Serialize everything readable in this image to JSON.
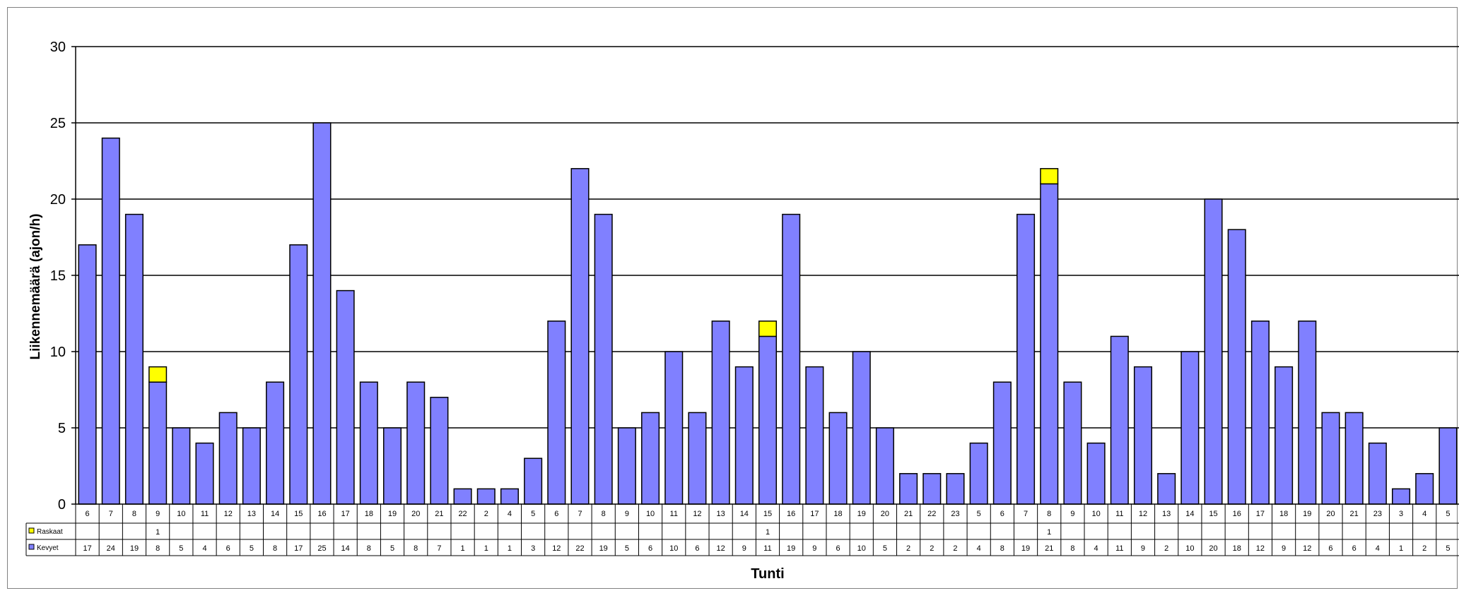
{
  "chart_data": {
    "type": "bar",
    "stacked": true,
    "ylabel": "Liikennemäärä (ajon/h)",
    "xlabel": "Tunti",
    "ylim": [
      0,
      30
    ],
    "yticks": [
      0,
      5,
      10,
      15,
      20,
      25,
      30
    ],
    "grid": true,
    "legend_placement": "data-table-left",
    "categories": [
      "6",
      "7",
      "8",
      "9",
      "10",
      "11",
      "12",
      "13",
      "14",
      "15",
      "16",
      "17",
      "18",
      "19",
      "20",
      "21",
      "22",
      "2",
      "4",
      "5",
      "6",
      "7",
      "8",
      "9",
      "10",
      "11",
      "12",
      "13",
      "14",
      "15",
      "16",
      "17",
      "18",
      "19",
      "20",
      "21",
      "22",
      "23",
      "5",
      "6",
      "7",
      "8",
      "9",
      "10",
      "11",
      "12",
      "13",
      "14",
      "15",
      "16",
      "17",
      "18",
      "19",
      "20",
      "21",
      "23",
      "3",
      "4",
      "5"
    ],
    "series": [
      {
        "name": "Kevyet",
        "color": "#8080ff",
        "values": [
          17,
          24,
          19,
          8,
          5,
          4,
          6,
          5,
          8,
          17,
          25,
          14,
          8,
          5,
          8,
          7,
          1,
          1,
          1,
          3,
          12,
          22,
          19,
          5,
          6,
          10,
          6,
          12,
          9,
          11,
          19,
          9,
          6,
          10,
          5,
          2,
          2,
          2,
          4,
          8,
          19,
          21,
          8,
          4,
          11,
          9,
          2,
          10,
          20,
          18,
          12,
          9,
          12,
          6,
          6,
          4,
          1,
          2,
          5
        ]
      },
      {
        "name": "Raskaat",
        "color": "#ffff00",
        "values": [
          null,
          null,
          null,
          1,
          null,
          null,
          null,
          null,
          null,
          null,
          null,
          null,
          null,
          null,
          null,
          null,
          null,
          null,
          null,
          null,
          null,
          null,
          null,
          null,
          null,
          null,
          null,
          null,
          null,
          1,
          null,
          null,
          null,
          null,
          null,
          null,
          null,
          null,
          null,
          null,
          null,
          1,
          null,
          null,
          null,
          null,
          null,
          null,
          null,
          null,
          null,
          null,
          null,
          null,
          null,
          null,
          null,
          null,
          null
        ]
      }
    ]
  }
}
